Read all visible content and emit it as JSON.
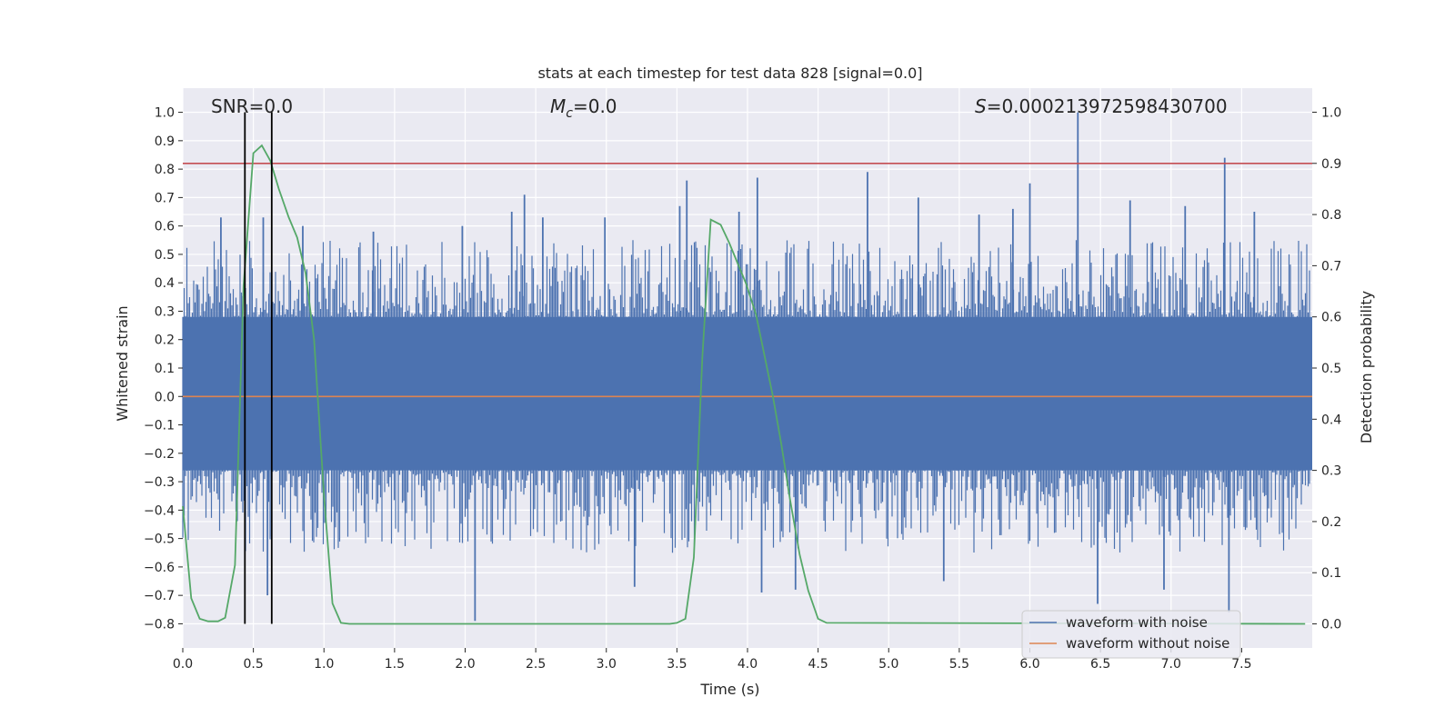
{
  "chart_data": {
    "type": "line",
    "title": "stats at each timestep for test data 828 [signal=0.0]",
    "xlabel": "Time (s)",
    "ylabel": "Whitened strain",
    "y2label": "Detection probability",
    "xlim": [
      0.0,
      8.0
    ],
    "ylim": [
      -0.885,
      1.085
    ],
    "y2lim": [
      -0.047,
      1.047
    ],
    "xticks": [
      "0.0",
      "0.5",
      "1.0",
      "1.5",
      "2.0",
      "2.5",
      "3.0",
      "3.5",
      "4.0",
      "4.5",
      "5.0",
      "5.5",
      "6.0",
      "6.5",
      "7.0",
      "7.5"
    ],
    "yticks": [
      "-0.8",
      "-0.7",
      "-0.6",
      "-0.5",
      "-0.4",
      "-0.3",
      "-0.2",
      "-0.1",
      "0.0",
      "0.1",
      "0.2",
      "0.3",
      "0.4",
      "0.5",
      "0.6",
      "0.7",
      "0.8",
      "0.9",
      "1.0"
    ],
    "y2ticks": [
      "0.0",
      "0.1",
      "0.2",
      "0.3",
      "0.4",
      "0.5",
      "0.6",
      "0.7",
      "0.8",
      "0.9",
      "1.0"
    ],
    "grid": true,
    "legend_position": "lower-right",
    "annotations": {
      "snr": {
        "prefix": "SNR",
        "text": "=0.0"
      },
      "mc": {
        "var": "M",
        "sub": "c",
        "text": "=0.0"
      },
      "s": {
        "var": "S",
        "text": "=0.000213972598430700"
      }
    },
    "threshold": {
      "axis": "right",
      "value": 0.9,
      "color": "#c44e52"
    },
    "vertical_markers": [
      0.44,
      0.63
    ],
    "series": [
      {
        "name": "waveform with noise",
        "color": "#4c72b0",
        "kind": "noise",
        "core_band": [
          -0.26,
          0.28
        ],
        "typical_peak": [
          -0.55,
          0.55
        ],
        "spikes": [
          {
            "x": 0.27,
            "y": 0.63
          },
          {
            "x": 0.57,
            "y": 0.63
          },
          {
            "x": 0.6,
            "y": -0.7
          },
          {
            "x": 2.07,
            "y": -0.79
          },
          {
            "x": 2.33,
            "y": 0.65
          },
          {
            "x": 2.42,
            "y": 0.71
          },
          {
            "x": 2.55,
            "y": 0.63
          },
          {
            "x": 3.57,
            "y": 0.76
          },
          {
            "x": 3.94,
            "y": 0.65
          },
          {
            "x": 4.07,
            "y": 0.77
          },
          {
            "x": 4.1,
            "y": -0.69
          },
          {
            "x": 4.85,
            "y": 0.79
          },
          {
            "x": 4.34,
            "y": -0.68
          },
          {
            "x": 5.64,
            "y": 0.64
          },
          {
            "x": 5.88,
            "y": 0.66
          },
          {
            "x": 6.0,
            "y": 0.75
          },
          {
            "x": 6.34,
            "y": 1.0
          },
          {
            "x": 6.48,
            "y": -0.73
          },
          {
            "x": 6.71,
            "y": 0.69
          },
          {
            "x": 7.38,
            "y": 0.84
          },
          {
            "x": 7.41,
            "y": -0.76
          },
          {
            "x": 7.59,
            "y": 0.65
          },
          {
            "x": 1.35,
            "y": 0.58
          },
          {
            "x": 2.99,
            "y": 0.63
          },
          {
            "x": 3.52,
            "y": 0.67
          },
          {
            "x": 5.21,
            "y": 0.7
          },
          {
            "x": 5.39,
            "y": -0.65
          },
          {
            "x": 6.95,
            "y": -0.68
          },
          {
            "x": 7.1,
            "y": 0.67
          },
          {
            "x": 1.98,
            "y": 0.6
          },
          {
            "x": 0.85,
            "y": 0.6
          },
          {
            "x": 3.2,
            "y": -0.67
          }
        ]
      },
      {
        "name": "waveform without noise",
        "color": "#dd8452",
        "x": [
          0.0,
          8.0
        ],
        "values": [
          0.0,
          0.0
        ]
      },
      {
        "name": "Detection probability",
        "color": "#55a868",
        "axis": "right",
        "x": [
          0.0,
          0.06,
          0.12,
          0.18,
          0.25,
          0.3,
          0.37,
          0.43,
          0.5,
          0.56,
          0.62,
          0.68,
          0.75,
          0.81,
          0.87,
          0.93,
          1.0,
          1.06,
          1.12,
          1.18,
          3.45,
          3.5,
          3.56,
          3.62,
          3.68,
          3.74,
          3.81,
          3.87,
          3.93,
          3.99,
          4.06,
          4.12,
          4.18,
          4.24,
          4.3,
          4.37,
          4.43,
          4.5,
          4.56,
          7.95
        ],
        "values": [
          0.23,
          0.05,
          0.01,
          0.005,
          0.005,
          0.012,
          0.115,
          0.66,
          0.92,
          0.935,
          0.905,
          0.85,
          0.795,
          0.755,
          0.685,
          0.555,
          0.25,
          0.04,
          0.002,
          0.0,
          0.0,
          0.002,
          0.01,
          0.13,
          0.52,
          0.79,
          0.78,
          0.745,
          0.705,
          0.665,
          0.605,
          0.525,
          0.445,
          0.35,
          0.245,
          0.135,
          0.065,
          0.01,
          0.002,
          0.0
        ]
      }
    ],
    "legend": [
      "waveform with noise",
      "waveform without noise"
    ]
  }
}
